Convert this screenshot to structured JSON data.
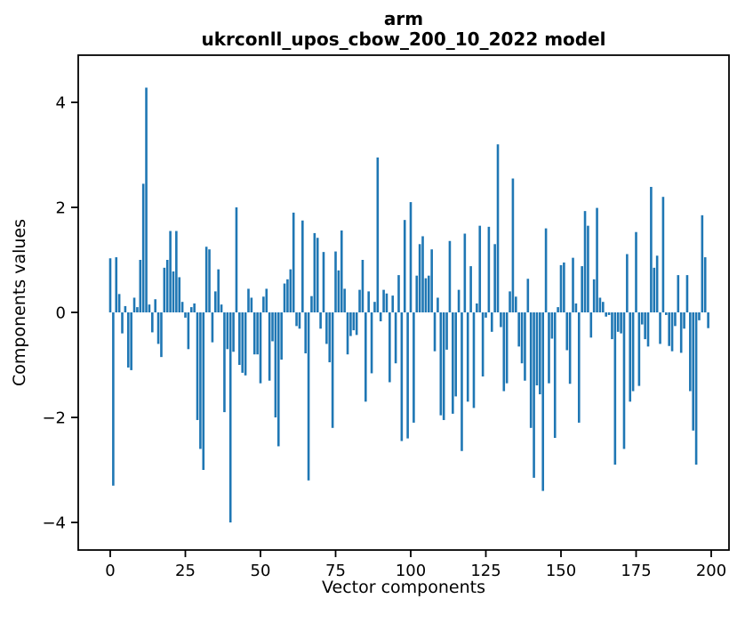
{
  "figure": {
    "background": "#ffffff"
  },
  "chart_data": {
    "type": "bar",
    "title": "arm",
    "subtitle": "ukrconll_upos_cbow_200_10_2022 model",
    "xlabel": "Vector components",
    "ylabel": "Components values",
    "bar_color": "#1f77b4",
    "axis_color": "#000000",
    "grid": false,
    "legend": "none",
    "x_ticks": [
      0,
      25,
      50,
      75,
      100,
      125,
      150,
      175,
      200
    ],
    "y_ticks": [
      -4,
      -2,
      0,
      2,
      4
    ],
    "xlim": [
      -10.7,
      206
    ],
    "ylim": [
      -4.55,
      4.9
    ],
    "x_start": 0,
    "values": [
      1.03,
      -3.3,
      1.05,
      0.35,
      -0.4,
      0.12,
      -1.05,
      -1.1,
      0.28,
      0.1,
      1.0,
      2.45,
      4.28,
      0.15,
      -0.38,
      0.25,
      -0.6,
      -0.85,
      0.85,
      1.0,
      1.55,
      0.78,
      1.55,
      0.67,
      0.2,
      -0.1,
      -0.7,
      0.1,
      0.17,
      -2.05,
      -2.6,
      -3.0,
      1.25,
      1.2,
      -0.57,
      0.4,
      0.82,
      0.15,
      -1.9,
      -0.7,
      -4.0,
      -0.75,
      2.0,
      -1.0,
      -1.15,
      -1.2,
      0.45,
      0.28,
      -0.8,
      -0.8,
      -1.35,
      0.3,
      0.45,
      -1.3,
      -0.55,
      -2.0,
      -2.55,
      -0.9,
      0.55,
      0.63,
      0.82,
      1.9,
      -0.26,
      -0.31,
      1.75,
      -0.78,
      -3.2,
      0.31,
      1.51,
      1.42,
      -0.31,
      1.15,
      -0.6,
      -0.95,
      -2.2,
      1.16,
      0.8,
      1.56,
      0.45,
      -0.8,
      -0.45,
      -0.34,
      -0.43,
      0.43,
      1.0,
      -1.7,
      0.4,
      -1.16,
      0.2,
      2.95,
      -0.17,
      0.43,
      0.36,
      -1.33,
      0.32,
      -0.97,
      0.71,
      -2.45,
      1.76,
      -2.4,
      2.1,
      -2.1,
      0.7,
      1.3,
      1.45,
      0.65,
      0.7,
      1.2,
      -0.74,
      0.28,
      -1.96,
      -2.05,
      -0.71,
      1.36,
      -1.93,
      -1.6,
      0.43,
      -2.64,
      1.5,
      -1.7,
      0.88,
      -1.82,
      0.17,
      1.65,
      -1.22,
      -0.1,
      1.63,
      -0.37,
      1.3,
      3.2,
      -0.28,
      -1.5,
      -1.35,
      0.4,
      2.55,
      0.3,
      -0.65,
      -0.97,
      -1.3,
      0.64,
      -2.2,
      -3.15,
      -1.39,
      -1.56,
      -3.4,
      1.6,
      -1.35,
      -0.5,
      -2.39,
      0.1,
      0.9,
      0.95,
      -0.72,
      -1.36,
      1.04,
      0.17,
      -2.1,
      0.88,
      1.93,
      1.65,
      -0.48,
      0.63,
      1.99,
      0.28,
      0.2,
      -0.08,
      -0.05,
      -0.51,
      -2.9,
      -0.37,
      -0.4,
      -2.6,
      1.11,
      -1.7,
      -1.5,
      1.53,
      -1.4,
      -0.23,
      -0.51,
      -0.65,
      2.39,
      0.85,
      1.08,
      -0.6,
      2.2,
      -0.05,
      -0.64,
      -0.74,
      -0.26,
      0.71,
      -0.77,
      -0.31,
      0.71,
      -1.5,
      -2.25,
      -2.9,
      -0.15,
      1.85,
      1.05,
      -0.3
    ]
  }
}
